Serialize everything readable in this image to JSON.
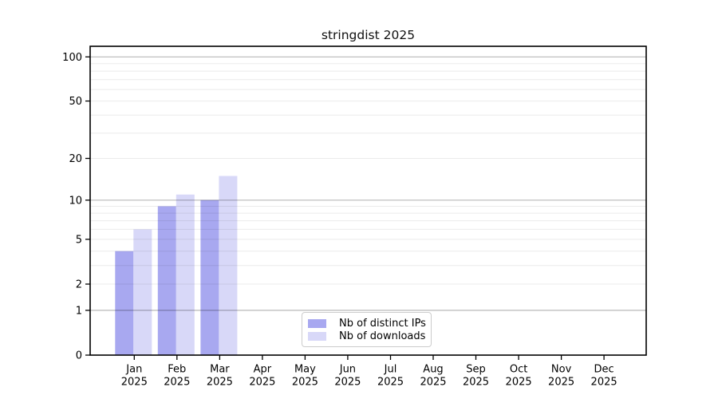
{
  "title": "stringdist 2025",
  "chart_data": {
    "type": "bar",
    "title": "stringdist 2025",
    "categories": [
      "Jan 2025",
      "Feb 2025",
      "Mar 2025",
      "Apr 2025",
      "May 2025",
      "Jun 2025",
      "Jul 2025",
      "Aug 2025",
      "Sep 2025",
      "Oct 2025",
      "Nov 2025",
      "Dec 2025"
    ],
    "x_tick_labels": [
      {
        "month": "Jan",
        "year": "2025"
      },
      {
        "month": "Feb",
        "year": "2025"
      },
      {
        "month": "Mar",
        "year": "2025"
      },
      {
        "month": "Apr",
        "year": "2025"
      },
      {
        "month": "May",
        "year": "2025"
      },
      {
        "month": "Jun",
        "year": "2025"
      },
      {
        "month": "Jul",
        "year": "2025"
      },
      {
        "month": "Aug",
        "year": "2025"
      },
      {
        "month": "Sep",
        "year": "2025"
      },
      {
        "month": "Oct",
        "year": "2025"
      },
      {
        "month": "Nov",
        "year": "2025"
      },
      {
        "month": "Dec",
        "year": "2025"
      }
    ],
    "series": [
      {
        "name": "Nb of distinct IPs",
        "color": "#a8a8f0",
        "values": [
          4,
          9,
          10,
          0,
          0,
          0,
          0,
          0,
          0,
          0,
          0,
          0
        ]
      },
      {
        "name": "Nb of downloads",
        "color": "#d8d8f8",
        "values": [
          6,
          11,
          15,
          0,
          0,
          0,
          0,
          0,
          0,
          0,
          0,
          0
        ]
      }
    ],
    "y_axis": {
      "scale": "log1p",
      "ticks": [
        0,
        1,
        2,
        5,
        10,
        20,
        50,
        100
      ],
      "major_gridlines": [
        1,
        10,
        100
      ],
      "minor_gridlines": [
        2,
        3,
        4,
        5,
        6,
        7,
        8,
        9,
        20,
        30,
        40,
        50,
        60,
        70,
        80,
        90
      ],
      "min": 0,
      "max": 118
    },
    "legend_position": "bottom-center",
    "grid": true,
    "colors": {
      "major_grid": "rgba(0,0,0,0.28)",
      "minor_grid": "rgba(0,0,0,0.08)",
      "axis": "#000000",
      "text": "#000000"
    }
  },
  "legend": {
    "items": [
      {
        "label": "Nb of distinct IPs",
        "color": "#a8a8f0"
      },
      {
        "label": "Nb of downloads",
        "color": "#d8d8f8"
      }
    ]
  }
}
